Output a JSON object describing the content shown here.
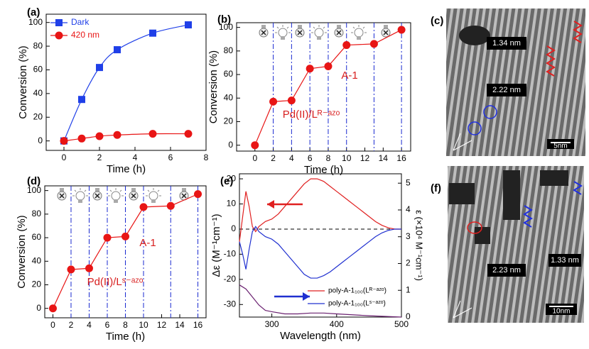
{
  "chart_data": [
    {
      "label": "(a)",
      "type": "line",
      "smooth": true,
      "xlabel": "Time (h)",
      "ylabel": "Conversion (%)",
      "xlim": [
        -1,
        8
      ],
      "ylim": [
        -8,
        107
      ],
      "xticks": [
        0,
        2,
        4,
        6,
        8
      ],
      "yticks": [
        0,
        20,
        40,
        60,
        80,
        100
      ],
      "legend": "upper left",
      "series": [
        {
          "name": "Dark",
          "color": "#1f3fe8",
          "marker": "square",
          "x": [
            0,
            1,
            2,
            3,
            5,
            7
          ],
          "values": [
            0,
            35,
            62,
            77,
            91,
            98
          ]
        },
        {
          "name": "420 nm",
          "color": "#e81515",
          "marker": "circle",
          "x": [
            0,
            1,
            2,
            3,
            5,
            7
          ],
          "values": [
            0,
            2,
            4,
            5,
            6,
            6
          ]
        }
      ]
    },
    {
      "label": "(b)",
      "type": "line",
      "xlabel": "Time (h)",
      "ylabel": "Conversion (%)",
      "vertical_lines": true,
      "xlim": [
        -2,
        17
      ],
      "ylim": [
        -5,
        104
      ],
      "xticks": [
        0,
        2,
        4,
        6,
        8,
        10,
        12,
        14,
        16
      ],
      "yticks": [
        0,
        20,
        40,
        60,
        80,
        100
      ],
      "annotations": [
        "A-1",
        "Pd(II)/Lᴿ⁻ᵃᶻᵒ"
      ],
      "series": [
        {
          "color": "#e81515",
          "marker": "circle",
          "x": [
            0,
            2,
            4,
            6,
            8,
            10,
            13,
            16
          ],
          "values": [
            0,
            37,
            38,
            65,
            67,
            85,
            86,
            98
          ]
        }
      ]
    },
    {
      "label": "(d)",
      "type": "line",
      "xlabel": "Time (h)",
      "ylabel": "Conversion (%)",
      "vertical_lines": true,
      "xlim": [
        -0.9,
        16.9
      ],
      "ylim": [
        -8,
        104
      ],
      "xticks": [
        0,
        2,
        4,
        6,
        8,
        10,
        12,
        14,
        16
      ],
      "yticks": [
        0,
        20,
        40,
        60,
        80,
        100
      ],
      "annotations": [
        "A-1",
        "Pd(II)/Lˢ⁻ᵃᶻᵒ"
      ],
      "series": [
        {
          "color": "#e81515",
          "marker": "circle",
          "x": [
            0,
            2,
            4,
            6,
            8,
            10,
            13,
            16
          ],
          "values": [
            0,
            33,
            34,
            60,
            61,
            86,
            87,
            97
          ]
        }
      ]
    },
    {
      "label": "(e)",
      "type": "line",
      "xlabel": "Wavelength (nm)",
      "ylabel": "Δε (M⁻¹cm⁻¹)",
      "y2label": "ε (×10⁴ M⁻¹cm⁻¹)",
      "zero_line": true,
      "xlim": [
        250,
        500
      ],
      "ylim": [
        -35,
        22
      ],
      "y2lim": [
        0,
        5.35
      ],
      "xticks": [
        300,
        400,
        500
      ],
      "yticks": [
        -30,
        -20,
        -10,
        0,
        10,
        20
      ],
      "y2ticks": [
        0,
        1,
        2,
        3,
        4,
        5
      ],
      "legend": "lower right",
      "series": [
        {
          "name": "poly-A-1₁₀₀(Lᴿ⁻ᵃᶻᵒ)",
          "color": "#e02020",
          "x": [
            250,
            255,
            260,
            265,
            270,
            275,
            280,
            290,
            300,
            310,
            320,
            330,
            340,
            350,
            360,
            370,
            380,
            390,
            400,
            410,
            420,
            430,
            440,
            450,
            460,
            470,
            480,
            490,
            500
          ],
          "values": [
            -5,
            5,
            15,
            9,
            1,
            -1,
            1,
            3,
            4,
            6,
            9,
            12,
            15,
            18,
            20,
            20,
            19,
            17,
            15,
            13,
            11,
            9,
            7,
            5,
            3,
            1.5,
            0.5,
            0,
            0
          ]
        },
        {
          "name": "poly-A-1₁₀₀(Lˢ⁻ᵃᶻᵒ)",
          "color": "#2030d0",
          "x": [
            250,
            255,
            260,
            265,
            270,
            275,
            280,
            290,
            300,
            310,
            320,
            330,
            340,
            350,
            360,
            370,
            380,
            390,
            400,
            410,
            420,
            430,
            440,
            450,
            460,
            470,
            480,
            490,
            500
          ],
          "values": [
            -5,
            -10,
            -16,
            -8,
            -1,
            1,
            -1,
            -3,
            -4,
            -6,
            -9,
            -12,
            -15,
            -18,
            -19.5,
            -19.5,
            -18.5,
            -17,
            -15,
            -13,
            -11,
            -9,
            -7,
            -5,
            -3,
            -1.5,
            -0.5,
            0,
            0
          ]
        },
        {
          "color": "#6a2070",
          "axis": "y2",
          "x": [
            250,
            260,
            270,
            280,
            290,
            300,
            320,
            340,
            360,
            380,
            400,
            450,
            500
          ],
          "values": [
            1.2,
            1.05,
            0.75,
            0.45,
            0.25,
            0.2,
            0.12,
            0.12,
            0.15,
            0.15,
            0.12,
            0.05,
            0
          ]
        }
      ]
    }
  ],
  "images": [
    {
      "label": "(c)",
      "texts": [
        "1.34 nm",
        "2.22 nm",
        "5nm"
      ]
    },
    {
      "label": "(f)",
      "texts": [
        "2.23 nm",
        "1.33 nm",
        "10nm"
      ]
    }
  ]
}
